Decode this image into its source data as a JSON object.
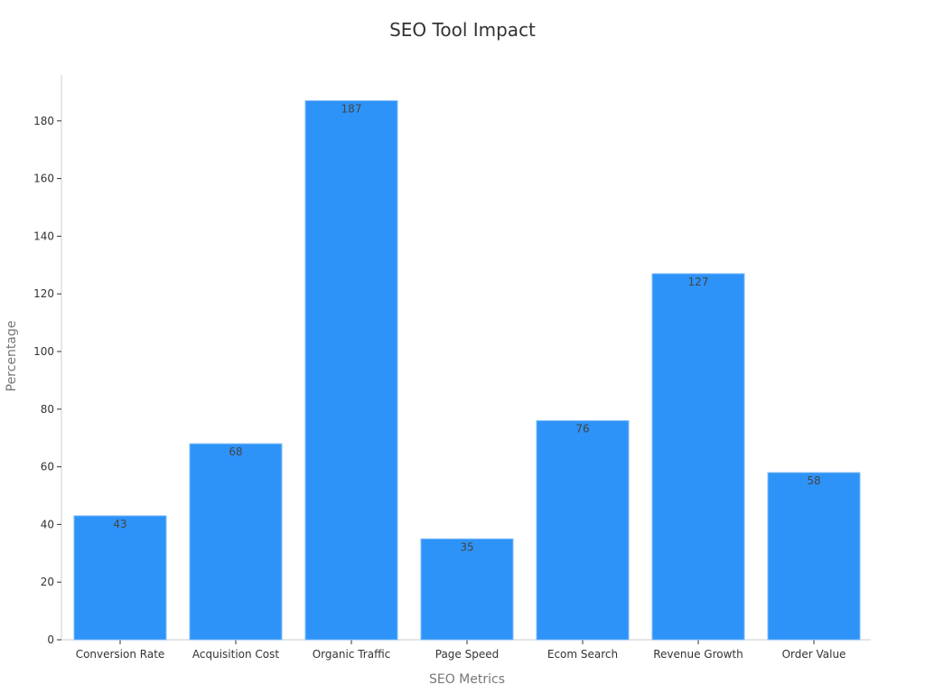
{
  "chart_data": {
    "type": "bar",
    "title": "SEO Tool Impact",
    "xlabel": "SEO Metrics",
    "ylabel": "Percentage",
    "categories": [
      "Conversion Rate",
      "Acquisition Cost",
      "Organic Traffic",
      "Page Speed",
      "Ecom Search",
      "Revenue Growth",
      "Order Value"
    ],
    "values": [
      43,
      68,
      187,
      35,
      76,
      127,
      58
    ],
    "value_labels": [
      "43",
      "68",
      "187",
      "35",
      "76",
      "127",
      "58"
    ],
    "ylim": [
      0,
      196
    ],
    "yticks": [
      0,
      20,
      40,
      60,
      80,
      100,
      120,
      140,
      160,
      180
    ],
    "ytick_labels": [
      "0",
      "20",
      "40",
      "60",
      "80",
      "100",
      "120",
      "140",
      "160",
      "180"
    ],
    "grid": false,
    "legend": "none",
    "colors": {
      "bar": "#2e93f8",
      "bar_edge": "#7fbcf9",
      "axis": "#cccccc",
      "text": "#333333"
    }
  }
}
